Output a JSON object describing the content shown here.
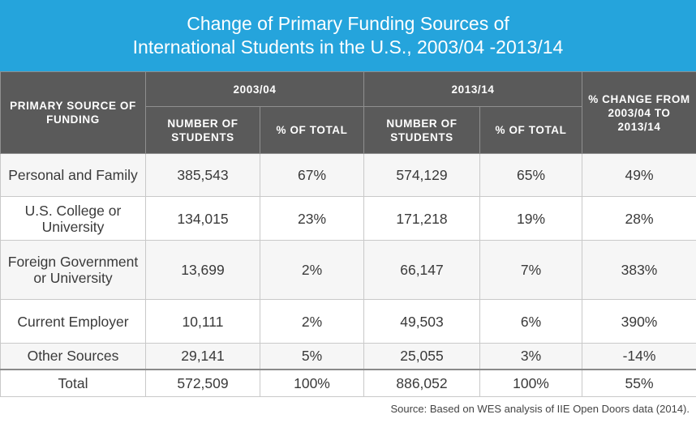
{
  "title": {
    "line1": "Change of Primary Funding Sources of",
    "line2": "International Students in the U.S., 2003/04 -2013/14"
  },
  "chart_data": {
    "type": "table",
    "headers": {
      "source_col": "PRIMARY SOURCE OF FUNDING",
      "year1": "2003/04",
      "year2": "2013/14",
      "number_of_students": "NUMBER OF STUDENTS",
      "pct_of_total": "% OF TOTAL",
      "pct_change": "% CHANGE FROM 2003/04 TO 2013/14"
    },
    "rows": [
      {
        "source": "Personal and Family",
        "n1": "385,543",
        "p1": "67%",
        "n2": "574,129",
        "p2": "65%",
        "change": "49%"
      },
      {
        "source": "U.S. College or University",
        "n1": "134,015",
        "p1": "23%",
        "n2": "171,218",
        "p2": "19%",
        "change": "28%"
      },
      {
        "source": "Foreign Government or University",
        "n1": "13,699",
        "p1": "2%",
        "n2": "66,147",
        "p2": "7%",
        "change": "383%"
      },
      {
        "source": "Current Employer",
        "n1": "10,111",
        "p1": "2%",
        "n2": "49,503",
        "p2": "6%",
        "change": "390%"
      },
      {
        "source": "Other Sources",
        "n1": "29,141",
        "p1": "5%",
        "n2": "25,055",
        "p2": "3%",
        "change": "-14%"
      }
    ],
    "total": {
      "source": "Total",
      "n1": "572,509",
      "p1": "100%",
      "n2": "886,052",
      "p2": "100%",
      "change": "55%"
    }
  },
  "source_note": "Source: Based on WES analysis of IIE Open Doors data (2014).",
  "colors": {
    "title_bg": "#25a4dc",
    "header_bg": "#5a5a5a"
  }
}
